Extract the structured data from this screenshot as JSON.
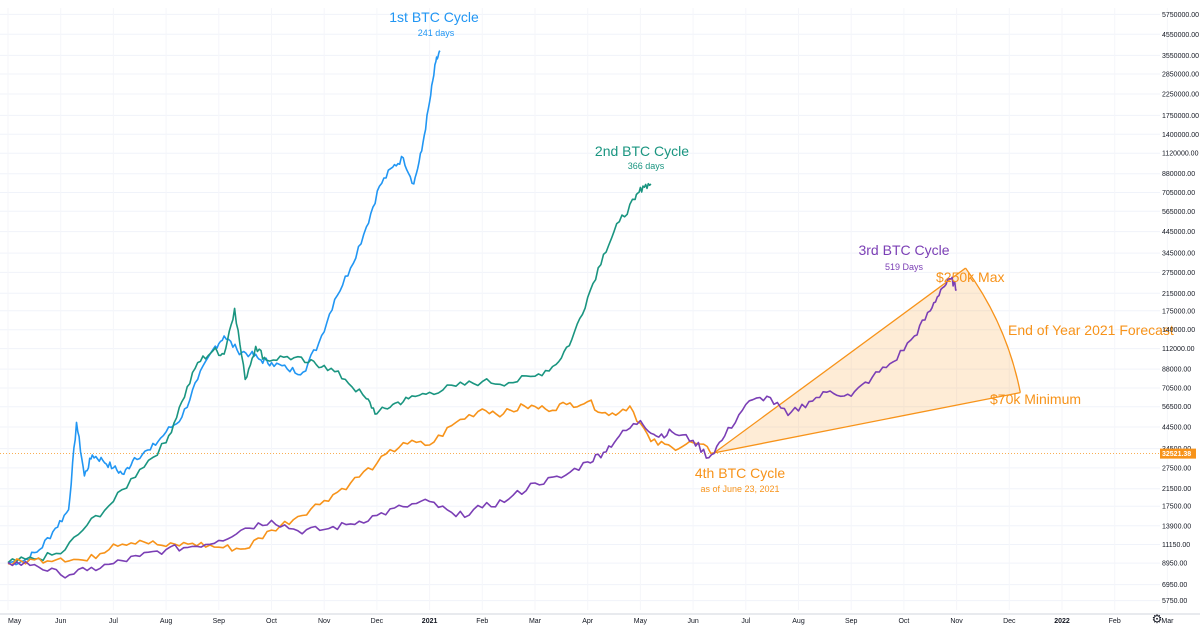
{
  "chart_data": {
    "type": "line",
    "title": "",
    "yscale": "log",
    "ylim": [
      5400,
      6200000
    ],
    "x_tick_labels": [
      "May",
      "Jun",
      "Jul",
      "Aug",
      "Sep",
      "Oct",
      "Nov",
      "Dec",
      "2021",
      "Feb",
      "Mar",
      "Apr",
      "May",
      "Jun",
      "Jul",
      "Aug",
      "Sep",
      "Oct",
      "Nov",
      "Dec",
      "2022",
      "Feb",
      "Mar"
    ],
    "bold_x_ticks": [
      "2021",
      "2022"
    ],
    "y_tick_values": [
      5750,
      6950,
      8950,
      11150,
      13900,
      17500,
      21500,
      27500,
      34500,
      44500,
      56500,
      70500,
      88000,
      112000,
      140000,
      175000,
      215000,
      275000,
      345000,
      445000,
      565000,
      705000,
      880000,
      1120000,
      1400000,
      1750000,
      2250000,
      2850000,
      3550000,
      4550000,
      5750000
    ],
    "y_tick_labels": [
      "5750.00",
      "6950.00",
      "8950.00",
      "11150.00",
      "13900.00",
      "17500.00",
      "21500.00",
      "27500.00",
      "34500.00",
      "44500.00",
      "56500.00",
      "70500.00",
      "88000.00",
      "112000.00",
      "140000.00",
      "175000.00",
      "215000.00",
      "275000.00",
      "345000.00",
      "445000.00",
      "565000.00",
      "705000.00",
      "880000.00",
      "1120000.00",
      "1400000.00",
      "1750000.00",
      "2250000.00",
      "2850000.00",
      "3550000.00",
      "4550000.00",
      "5750000.00"
    ],
    "current_price": 32521.38,
    "current_price_label": "32521.38",
    "series": [
      {
        "name": "1st BTC Cycle",
        "subtitle": "241 days",
        "color": "#2196f3",
        "x_month": [
          0,
          0.3,
          0.6,
          0.9,
          1.15,
          1.3,
          1.45,
          1.6,
          1.8,
          2.0,
          2.2,
          2.4,
          2.7,
          3.0,
          3.3,
          3.6,
          3.9,
          4.1,
          4.35,
          4.6,
          4.8,
          5.0,
          5.3,
          5.6,
          5.9,
          6.2,
          6.5,
          6.8,
          7.05,
          7.3,
          7.5,
          7.7,
          7.85,
          8.0,
          8.12,
          8.2
        ],
        "values": [
          9000,
          9200,
          10500,
          13500,
          16800,
          47000,
          25000,
          32000,
          30000,
          27500,
          25500,
          31000,
          34000,
          42000,
          50000,
          78000,
          112000,
          130000,
          110000,
          105000,
          98000,
          95000,
          88000,
          85000,
          120000,
          200000,
          290000,
          470000,
          760000,
          950000,
          1060000,
          780000,
          1150000,
          2050000,
          3300000,
          3700000
        ]
      },
      {
        "name": "2nd BTC Cycle",
        "subtitle": "366 days",
        "color": "#1a9580",
        "x_month": [
          0,
          0.5,
          1.0,
          1.5,
          2.0,
          2.5,
          3.0,
          3.3,
          3.6,
          3.9,
          4.1,
          4.3,
          4.5,
          4.7,
          4.9,
          5.3,
          5.7,
          6.0,
          6.4,
          6.8,
          7.0,
          7.3,
          7.6,
          8.0,
          8.5,
          9.0,
          9.5,
          10.0,
          10.4,
          10.7,
          11.0,
          11.3,
          11.6,
          11.9,
          12.05,
          12.2
        ],
        "values": [
          9000,
          9400,
          10000,
          14000,
          18500,
          27000,
          37000,
          60000,
          95000,
          110000,
          105000,
          180000,
          78000,
          115000,
          98000,
          102000,
          95000,
          92000,
          78000,
          62000,
          52000,
          58000,
          62000,
          67000,
          72000,
          76000,
          75000,
          81000,
          93000,
          125000,
          205000,
          340000,
          500000,
          650000,
          760000,
          780000
        ]
      },
      {
        "name": "4th BTC Cycle",
        "subtitle": "as of June 23, 2021",
        "color": "#f7931a",
        "x_month": [
          0,
          0.5,
          1.0,
          1.5,
          2.0,
          2.5,
          3.0,
          3.5,
          4.0,
          4.5,
          5.0,
          5.5,
          6.0,
          6.5,
          7.0,
          7.5,
          8.0,
          8.5,
          9.0,
          9.4,
          9.8,
          10.2,
          10.6,
          11.0,
          11.4,
          11.8,
          12.2,
          12.6,
          13.0,
          13.4
        ],
        "values": [
          8900,
          9300,
          9500,
          9200,
          11200,
          11700,
          10900,
          11300,
          10800,
          10600,
          13200,
          15500,
          18700,
          23000,
          29000,
          37000,
          36000,
          47000,
          55000,
          52000,
          57000,
          55000,
          58000,
          60000,
          51000,
          57000,
          37500,
          35000,
          37000,
          32800
        ]
      },
      {
        "name": "3rd BTC Cycle",
        "subtitle": "519 Days",
        "color": "#7b3fb5",
        "x_month": [
          0,
          0.5,
          1.0,
          1.5,
          2.0,
          2.5,
          3.0,
          3.5,
          4.0,
          4.5,
          5.0,
          5.5,
          6.0,
          6.5,
          7.0,
          7.5,
          8.0,
          8.5,
          9.0,
          9.5,
          10.0,
          10.5,
          11.0,
          11.3,
          11.6,
          12.0,
          12.3,
          12.6,
          13.0,
          13.3,
          13.6,
          14.0,
          14.4,
          14.8,
          15.2,
          15.6,
          16.0,
          16.4,
          16.8,
          17.2,
          17.5,
          17.7,
          17.9,
          18.0
        ],
        "values": [
          9000,
          8800,
          7800,
          8200,
          8900,
          9700,
          10500,
          10900,
          11700,
          13500,
          14800,
          13100,
          13300,
          14200,
          15700,
          17400,
          18500,
          15500,
          17200,
          19000,
          23000,
          24500,
          29500,
          33000,
          40000,
          48000,
          40000,
          42000,
          38000,
          31000,
          40000,
          58000,
          64000,
          51000,
          60000,
          68000,
          64000,
          80000,
          96000,
          130000,
          175000,
          225000,
          255000,
          225000
        ]
      }
    ],
    "forecast": {
      "anchor_x_month": 13.4,
      "anchor_value": 32800,
      "max_label": "$250k Max",
      "max_value": 250000,
      "max_x_month": 17.85,
      "min_label": "$70k Minimum",
      "min_value": 70000,
      "min_x_month": 19.6,
      "forecast_label": "End of Year 2021 Forecast",
      "fill_color": "#f7931a"
    }
  }
}
